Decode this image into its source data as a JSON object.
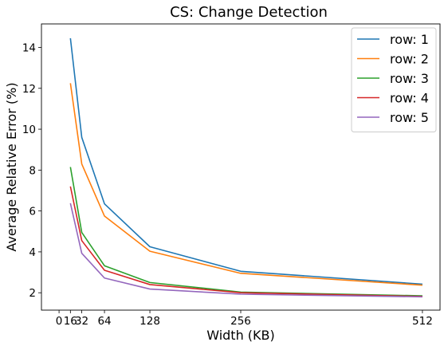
{
  "chart_data": {
    "type": "line",
    "title": "CS: Change Detection",
    "xlabel": "Width (KB)",
    "ylabel": "Average Relative Error (%)",
    "x": [
      16,
      32,
      64,
      128,
      256,
      512
    ],
    "xticks": [
      0,
      16,
      32,
      64,
      128,
      256,
      512
    ],
    "xlim": [
      -24.8,
      536.8
    ],
    "yticks": [
      2,
      4,
      6,
      8,
      10,
      12,
      14
    ],
    "ylim": [
      1.15,
      15.15
    ],
    "grid": false,
    "legend_position": "top-right",
    "series": [
      {
        "name": "row: 1",
        "color": "#1f77b4",
        "values": [
          14.45,
          9.6,
          6.35,
          4.25,
          3.05,
          2.42
        ]
      },
      {
        "name": "row: 2",
        "color": "#ff7f0e",
        "values": [
          12.25,
          8.3,
          5.75,
          4.03,
          2.95,
          2.37
        ]
      },
      {
        "name": "row: 3",
        "color": "#2ca02c",
        "values": [
          8.15,
          4.95,
          3.32,
          2.5,
          2.03,
          1.85
        ]
      },
      {
        "name": "row: 4",
        "color": "#d62728",
        "values": [
          7.2,
          4.55,
          3.1,
          2.4,
          2.0,
          1.82
        ]
      },
      {
        "name": "row: 5",
        "color": "#9467bd",
        "values": [
          6.38,
          3.93,
          2.72,
          2.18,
          1.93,
          1.8
        ]
      }
    ]
  }
}
